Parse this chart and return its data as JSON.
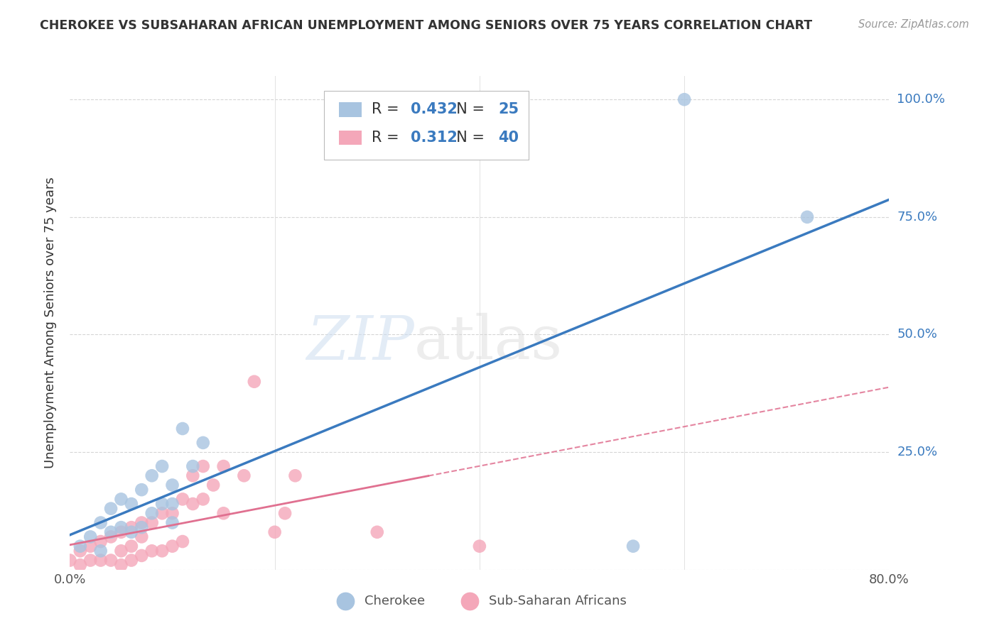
{
  "title": "CHEROKEE VS SUBSAHARAN AFRICAN UNEMPLOYMENT AMONG SENIORS OVER 75 YEARS CORRELATION CHART",
  "source": "Source: ZipAtlas.com",
  "ylabel": "Unemployment Among Seniors over 75 years",
  "xlim": [
    0.0,
    0.8
  ],
  "ylim": [
    0.0,
    1.05
  ],
  "ytick_positions": [
    0.0,
    0.25,
    0.5,
    0.75,
    1.0
  ],
  "yticklabels": [
    "",
    "25.0%",
    "50.0%",
    "75.0%",
    "100.0%"
  ],
  "cherokee_R": 0.432,
  "cherokee_N": 25,
  "subsaharan_R": 0.312,
  "subsaharan_N": 40,
  "cherokee_color": "#a8c4e0",
  "subsaharan_color": "#f4a7b9",
  "cherokee_line_color": "#3a7abf",
  "subsaharan_line_color": "#e07090",
  "watermark_zip": "ZIP",
  "watermark_atlas": "atlas",
  "legend_cherokee_label": "Cherokee",
  "legend_subsaharan_label": "Sub-Saharan Africans",
  "cherokee_x": [
    0.01,
    0.02,
    0.03,
    0.03,
    0.04,
    0.04,
    0.05,
    0.05,
    0.06,
    0.06,
    0.07,
    0.07,
    0.08,
    0.08,
    0.09,
    0.09,
    0.1,
    0.1,
    0.1,
    0.11,
    0.12,
    0.13,
    0.55,
    0.6,
    0.72
  ],
  "cherokee_y": [
    0.05,
    0.07,
    0.04,
    0.1,
    0.08,
    0.13,
    0.09,
    0.15,
    0.08,
    0.14,
    0.09,
    0.17,
    0.12,
    0.2,
    0.14,
    0.22,
    0.1,
    0.14,
    0.18,
    0.3,
    0.22,
    0.27,
    0.05,
    1.0,
    0.75
  ],
  "subsaharan_x": [
    0.0,
    0.01,
    0.01,
    0.02,
    0.02,
    0.03,
    0.03,
    0.04,
    0.04,
    0.05,
    0.05,
    0.05,
    0.06,
    0.06,
    0.06,
    0.07,
    0.07,
    0.07,
    0.08,
    0.08,
    0.09,
    0.09,
    0.1,
    0.1,
    0.11,
    0.11,
    0.12,
    0.12,
    0.13,
    0.13,
    0.14,
    0.15,
    0.15,
    0.17,
    0.18,
    0.2,
    0.21,
    0.22,
    0.3,
    0.4
  ],
  "subsaharan_y": [
    0.02,
    0.01,
    0.04,
    0.02,
    0.05,
    0.02,
    0.06,
    0.02,
    0.07,
    0.01,
    0.04,
    0.08,
    0.02,
    0.05,
    0.09,
    0.03,
    0.07,
    0.1,
    0.04,
    0.1,
    0.04,
    0.12,
    0.05,
    0.12,
    0.06,
    0.15,
    0.14,
    0.2,
    0.15,
    0.22,
    0.18,
    0.12,
    0.22,
    0.2,
    0.4,
    0.08,
    0.12,
    0.2,
    0.08,
    0.05
  ],
  "grid_color": "#cccccc",
  "background_color": "#ffffff",
  "blue_num_color": "#3a7abf",
  "label_color": "#555555"
}
